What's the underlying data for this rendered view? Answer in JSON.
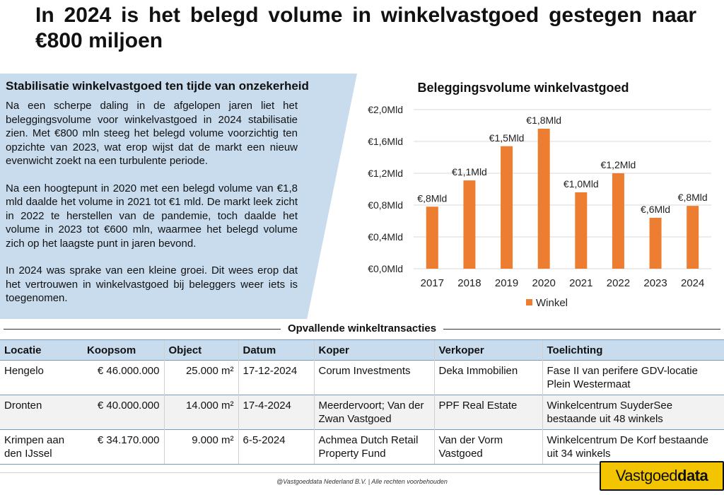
{
  "title": "In 2024 is het belegd volume in winkelvastgoed gestegen naar €800 miljoen",
  "panel": {
    "heading": "Stabilisatie winkelvastgoed ten tijde van onzekerheid",
    "paragraphs": [
      "Na een scherpe daling in de afgelopen jaren liet het beleggingsvolume voor winkelvastgoed in 2024 stabilisatie zien. Met €800 mln steeg het belegd volume voorzichtig ten opzichte van 2023, wat erop wijst dat de markt een nieuw evenwicht zoekt na een turbulente periode.",
      "Na een hoogtepunt in 2020 met een belegd volume van €1,8 mld daalde het volume in 2021 tot €1 mld. De markt leek zicht in 2022 te herstellen van de pandemie, toch daalde het volume in 2023 tot €600 mln, waarmee het belegd volume zich op het laagste punt in jaren bevond.",
      "In 2024 was sprake van een kleine groei. Dit wees erop dat het vertrouwen in winkelvastgoed bij beleggers weer iets is toegenomen."
    ]
  },
  "chart_data": {
    "type": "bar",
    "title": "Beleggingsvolume winkelvastgoed",
    "categories": [
      "2017",
      "2018",
      "2019",
      "2020",
      "2021",
      "2022",
      "2023",
      "2024"
    ],
    "series": [
      {
        "name": "Winkel",
        "values": [
          0.78,
          1.11,
          1.54,
          1.76,
          0.96,
          1.2,
          0.64,
          0.79
        ],
        "color": "#ed7d31"
      }
    ],
    "data_labels": [
      "€,8Mld",
      "€1,1Mld",
      "€1,5Mld",
      "€1,8Mld",
      "€1,0Mld",
      "€1,2Mld",
      "€,6Mld",
      "€,8Mld"
    ],
    "ytick_values": [
      0,
      0.4,
      0.8,
      1.2,
      1.6,
      2.0
    ],
    "ytick_labels": [
      "€0,0Mld",
      "€0,4Mld",
      "€0,8Mld",
      "€1,2Mld",
      "€1,6Mld",
      "€2,0Mld"
    ],
    "ylim": [
      0,
      2.0
    ],
    "grid": true,
    "legend": "bottom"
  },
  "table": {
    "heading": "Opvallende winkeltransacties",
    "columns": [
      "Locatie",
      "Koopsom",
      "Object",
      "Datum",
      "Koper",
      "Verkoper",
      "Toelichting"
    ],
    "rows": [
      [
        "Hengelo",
        "€ 46.000.000",
        "25.000 m²",
        "17-12-2024",
        "Corum Investments",
        "Deka Immobilien",
        "Fase II van perifere GDV-locatie Plein Westermaat"
      ],
      [
        "Dronten",
        "€ 40.000.000",
        "14.000 m²",
        "17-4-2024",
        "Meerdervoort; Van der Zwan Vastgoed",
        "PPF Real Estate",
        "Winkelcentrum SuyderSee bestaande uit 48 winkels"
      ],
      [
        "Krimpen aan den IJssel",
        "€ 34.170.000",
        "9.000 m²",
        "6-5-2024",
        "Achmea Dutch Retail Property Fund",
        "Van der Vorm Vastgoed",
        "Winkelcentrum De Korf bestaande uit 34 winkels"
      ]
    ]
  },
  "footer": "@Vastgoeddata Nederland B.V. | Alle rechten voorbehouden",
  "logo": {
    "part1": "Vastgoed",
    "part2": "data",
    "color": "#f2c500"
  }
}
